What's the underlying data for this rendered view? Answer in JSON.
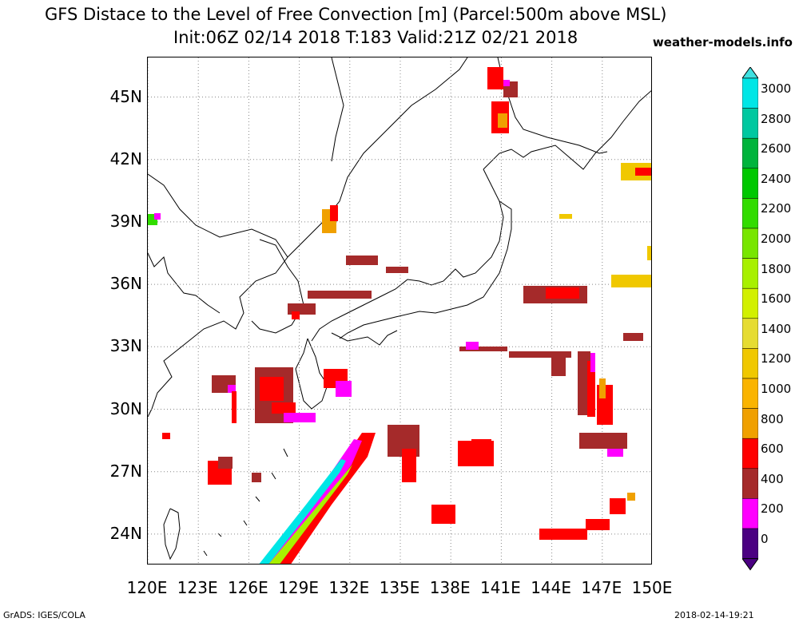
{
  "header": {
    "title_line1": "GFS Distace to the Level of Free Convection [m] (Parcel:500m above MSL)",
    "title_line2": "Init:06Z 02/14 2018 T:183 Valid:21Z 02/21 2018",
    "brand": "weather-models.info"
  },
  "map": {
    "extent": {
      "lon_min": 120,
      "lon_max": 150,
      "lat_min": 22.5,
      "lat_max": 46.9
    },
    "lat_ticks": [
      {
        "value": 45,
        "label": "45N"
      },
      {
        "value": 42,
        "label": "42N"
      },
      {
        "value": 39,
        "label": "39N"
      },
      {
        "value": 36,
        "label": "36N"
      },
      {
        "value": 33,
        "label": "33N"
      },
      {
        "value": 30,
        "label": "30N"
      },
      {
        "value": 27,
        "label": "27N"
      },
      {
        "value": 24,
        "label": "24N"
      }
    ],
    "lon_ticks": [
      {
        "value": 120,
        "label": "120E"
      },
      {
        "value": 123,
        "label": "123E"
      },
      {
        "value": 126,
        "label": "126E"
      },
      {
        "value": 129,
        "label": "129E"
      },
      {
        "value": 132,
        "label": "132E"
      },
      {
        "value": 135,
        "label": "135E"
      },
      {
        "value": 138,
        "label": "138E"
      },
      {
        "value": 141,
        "label": "141E"
      },
      {
        "value": 144,
        "label": "144E"
      },
      {
        "value": 147,
        "label": "147E"
      },
      {
        "value": 150,
        "label": "150E"
      }
    ],
    "regions_seen": [
      "Japan",
      "Korean Peninsula",
      "East China",
      "Taiwan",
      "Sakhalin"
    ]
  },
  "colorbar": {
    "labels": [
      "3000",
      "2800",
      "2600",
      "2400",
      "2200",
      "2000",
      "1800",
      "1600",
      "1400",
      "1200",
      "1000",
      "800",
      "600",
      "400",
      "200",
      "0"
    ],
    "colors": [
      "#00e6e6",
      "#00c8a0",
      "#00b43c",
      "#00c800",
      "#32dc00",
      "#78e600",
      "#a8f000",
      "#d2f000",
      "#e6dc32",
      "#f0c800",
      "#fab400",
      "#f0a000",
      "#ff0000",
      "#a52a2a",
      "#ff00ff",
      "#4b0082"
    ],
    "top_color": "#40e0e0",
    "bottom_color": "#4b0082"
  },
  "footer": {
    "left": "GrADS: IGES/COLA",
    "right": "2018-02-14-19:21"
  }
}
